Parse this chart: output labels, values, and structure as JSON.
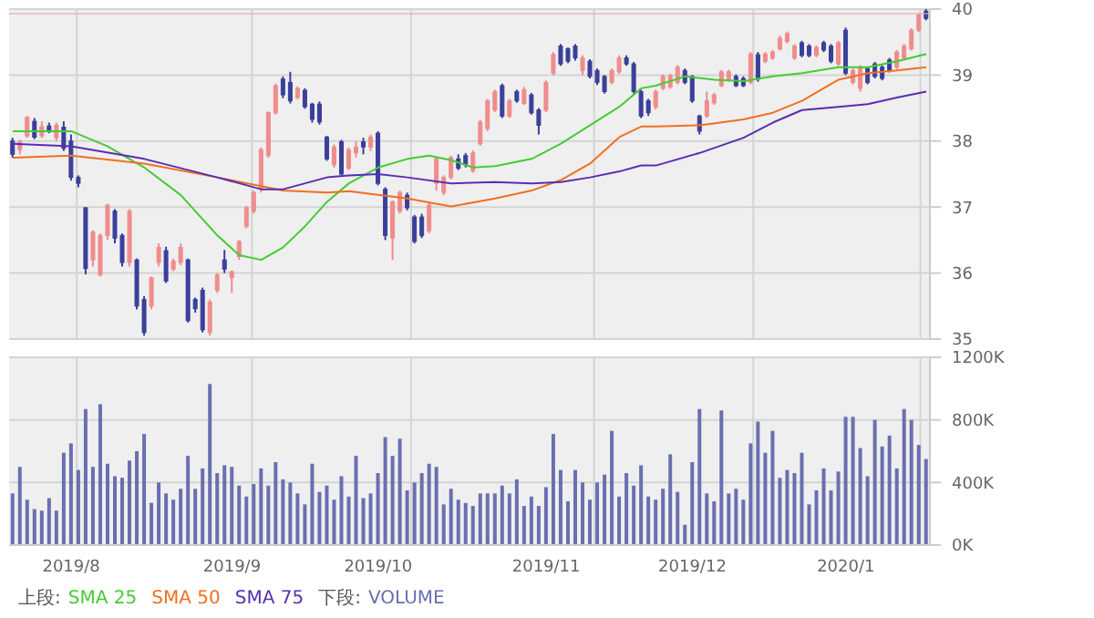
{
  "chart_data": [
    {
      "type": "candlestick",
      "categories": [
        null,
        null,
        null,
        null,
        null,
        null,
        null,
        null,
        "2019/8",
        null,
        null,
        null,
        null,
        null,
        null,
        null,
        null,
        null,
        null,
        null,
        null,
        null,
        null,
        null,
        null,
        null,
        null,
        null,
        null,
        null,
        "2019/9",
        null,
        null,
        null,
        null,
        null,
        null,
        null,
        null,
        null,
        null,
        null,
        null,
        null,
        null,
        null,
        null,
        null,
        null,
        null,
        "2019/10",
        null,
        null,
        null,
        null,
        null,
        null,
        null,
        null,
        null,
        null,
        null,
        null,
        null,
        null,
        null,
        null,
        null,
        null,
        null,
        null,
        null,
        null,
        "2019/11",
        null,
        null,
        null,
        null,
        null,
        null,
        null,
        null,
        null,
        null,
        null,
        null,
        null,
        null,
        null,
        null,
        null,
        null,
        null,
        "2019/12",
        null,
        null,
        null,
        null,
        null,
        null,
        null,
        null,
        null,
        null,
        null,
        null,
        null,
        null,
        null,
        null,
        null,
        null,
        null,
        null,
        "2020/1",
        null,
        null,
        null,
        null,
        null,
        null,
        null,
        null,
        null,
        null,
        null
      ],
      "ohlc": [
        [
          38.0,
          38.05,
          37.75,
          37.8
        ],
        [
          37.87,
          38.02,
          37.8,
          37.99
        ],
        [
          38.08,
          38.38,
          38.05,
          38.36
        ],
        [
          38.3,
          38.35,
          38.03,
          38.06
        ],
        [
          38.08,
          38.3,
          38.05,
          38.22
        ],
        [
          38.23,
          38.28,
          38.12,
          38.14
        ],
        [
          38.05,
          38.28,
          38.0,
          38.24
        ],
        [
          38.21,
          38.3,
          37.85,
          37.89
        ],
        [
          38.0,
          38.1,
          37.4,
          37.45
        ],
        [
          37.45,
          37.48,
          37.3,
          37.36
        ],
        [
          36.99,
          37.0,
          35.98,
          36.07
        ],
        [
          36.2,
          36.65,
          36.1,
          36.62
        ],
        [
          35.97,
          36.6,
          35.95,
          36.57
        ],
        [
          36.57,
          37.05,
          36.5,
          37.03
        ],
        [
          36.94,
          36.97,
          36.45,
          36.53
        ],
        [
          36.57,
          36.6,
          36.1,
          36.16
        ],
        [
          36.16,
          36.97,
          36.1,
          36.94
        ],
        [
          36.2,
          36.22,
          35.45,
          35.5
        ],
        [
          35.6,
          35.65,
          35.05,
          35.1
        ],
        [
          35.5,
          35.95,
          35.45,
          35.93
        ],
        [
          36.16,
          36.45,
          36.1,
          36.39
        ],
        [
          36.34,
          36.4,
          35.85,
          35.88
        ],
        [
          36.06,
          36.22,
          36.03,
          36.18
        ],
        [
          36.16,
          36.45,
          36.12,
          36.39
        ],
        [
          36.2,
          36.22,
          35.25,
          35.28
        ],
        [
          35.6,
          35.63,
          35.4,
          35.46
        ],
        [
          35.74,
          35.78,
          35.1,
          35.14
        ],
        [
          35.1,
          35.6,
          35.05,
          35.56
        ],
        [
          35.74,
          36.0,
          35.7,
          35.97
        ],
        [
          36.2,
          36.35,
          36.0,
          36.06
        ],
        [
          35.93,
          36.04,
          35.7,
          36.02
        ],
        [
          36.25,
          36.5,
          36.2,
          36.48
        ],
        [
          36.71,
          37.02,
          36.68,
          36.99
        ],
        [
          36.94,
          37.25,
          36.9,
          37.22
        ],
        [
          37.27,
          37.9,
          37.22,
          37.87
        ],
        [
          37.78,
          38.45,
          37.75,
          38.43
        ],
        [
          38.43,
          38.87,
          38.4,
          38.84
        ],
        [
          38.94,
          38.98,
          38.65,
          38.7
        ],
        [
          38.89,
          39.05,
          38.57,
          38.61
        ],
        [
          38.66,
          38.83,
          38.63,
          38.8
        ],
        [
          38.77,
          38.8,
          38.49,
          38.52
        ],
        [
          38.56,
          38.58,
          38.28,
          38.33
        ],
        [
          38.56,
          38.6,
          38.25,
          38.29
        ],
        [
          38.06,
          38.08,
          37.7,
          37.73
        ],
        [
          37.64,
          37.95,
          37.6,
          37.91
        ],
        [
          37.99,
          38.02,
          37.48,
          37.5
        ],
        [
          37.59,
          37.9,
          37.56,
          37.87
        ],
        [
          37.82,
          38.0,
          37.75,
          37.91
        ],
        [
          37.99,
          38.05,
          37.8,
          37.91
        ],
        [
          37.91,
          38.1,
          37.85,
          38.06
        ],
        [
          38.12,
          38.15,
          37.33,
          37.36
        ],
        [
          37.27,
          37.3,
          36.5,
          36.57
        ],
        [
          36.53,
          37.1,
          36.2,
          37.08
        ],
        [
          36.94,
          37.25,
          36.9,
          37.22
        ],
        [
          37.18,
          37.22,
          36.95,
          36.99
        ],
        [
          36.85,
          36.88,
          36.45,
          36.48
        ],
        [
          36.85,
          36.9,
          36.53,
          36.57
        ],
        [
          36.64,
          37.06,
          36.6,
          37.03
        ],
        [
          37.36,
          37.76,
          37.25,
          37.73
        ],
        [
          37.22,
          37.48,
          37.18,
          37.45
        ],
        [
          37.45,
          37.78,
          37.42,
          37.75
        ],
        [
          37.73,
          37.8,
          37.56,
          37.59
        ],
        [
          37.78,
          37.82,
          37.6,
          37.64
        ],
        [
          37.55,
          37.86,
          37.52,
          37.82
        ],
        [
          37.96,
          38.32,
          37.93,
          38.29
        ],
        [
          38.19,
          38.64,
          38.15,
          38.61
        ],
        [
          38.47,
          38.78,
          38.44,
          38.75
        ],
        [
          38.84,
          38.87,
          38.35,
          38.38
        ],
        [
          38.38,
          38.64,
          38.35,
          38.61
        ],
        [
          38.75,
          38.78,
          38.58,
          38.61
        ],
        [
          38.57,
          38.82,
          38.55,
          38.78
        ],
        [
          38.7,
          38.73,
          38.4,
          38.43
        ],
        [
          38.47,
          38.5,
          38.1,
          38.24
        ],
        [
          38.47,
          38.92,
          38.44,
          38.89
        ],
        [
          39.03,
          39.35,
          39.0,
          39.31
        ],
        [
          39.44,
          39.47,
          39.14,
          39.17
        ],
        [
          39.4,
          39.42,
          39.18,
          39.21
        ],
        [
          39.44,
          39.47,
          39.22,
          39.26
        ],
        [
          39.07,
          39.3,
          39.0,
          39.26
        ],
        [
          39.21,
          39.24,
          38.95,
          38.98
        ],
        [
          39.07,
          39.1,
          38.85,
          38.89
        ],
        [
          38.98,
          39.0,
          38.72,
          38.75
        ],
        [
          38.89,
          39.1,
          38.86,
          39.07
        ],
        [
          39.05,
          39.3,
          39.02,
          39.26
        ],
        [
          39.26,
          39.3,
          39.14,
          39.17
        ],
        [
          39.17,
          39.2,
          38.72,
          38.75
        ],
        [
          38.75,
          38.78,
          38.35,
          38.38
        ],
        [
          38.61,
          38.64,
          38.38,
          38.43
        ],
        [
          38.52,
          38.78,
          38.48,
          38.75
        ],
        [
          38.8,
          39.01,
          38.77,
          38.98
        ],
        [
          38.82,
          39.02,
          38.79,
          38.99
        ],
        [
          38.89,
          39.15,
          38.86,
          39.12
        ],
        [
          39.07,
          39.1,
          38.86,
          38.89
        ],
        [
          38.98,
          39.0,
          38.58,
          38.61
        ],
        [
          38.38,
          38.4,
          38.1,
          38.15
        ],
        [
          38.38,
          38.75,
          38.35,
          38.61
        ],
        [
          38.58,
          38.73,
          38.55,
          38.7
        ],
        [
          38.84,
          39.08,
          38.82,
          39.05
        ],
        [
          38.93,
          39.08,
          38.9,
          39.05
        ],
        [
          38.98,
          39.01,
          38.82,
          38.84
        ],
        [
          38.95,
          38.98,
          38.82,
          38.84
        ],
        [
          38.89,
          39.35,
          38.86,
          39.32
        ],
        [
          39.31,
          39.35,
          38.9,
          38.94
        ],
        [
          39.21,
          39.35,
          39.18,
          39.32
        ],
        [
          39.26,
          39.38,
          39.23,
          39.35
        ],
        [
          39.4,
          39.6,
          39.37,
          39.56
        ],
        [
          39.51,
          39.66,
          39.48,
          39.63
        ],
        [
          39.26,
          39.47,
          39.23,
          39.44
        ],
        [
          39.49,
          39.52,
          39.27,
          39.3
        ],
        [
          39.44,
          39.47,
          39.27,
          39.3
        ],
        [
          39.3,
          39.45,
          39.27,
          39.42
        ],
        [
          39.49,
          39.52,
          39.35,
          39.38
        ],
        [
          39.44,
          39.47,
          39.18,
          39.21
        ],
        [
          39.17,
          39.52,
          39.14,
          39.49
        ],
        [
          39.68,
          39.72,
          39.0,
          39.03
        ],
        [
          38.89,
          39.1,
          38.86,
          39.07
        ],
        [
          38.8,
          39.15,
          38.75,
          39.12
        ],
        [
          39.1,
          39.13,
          38.86,
          38.89
        ],
        [
          39.17,
          39.2,
          38.95,
          38.98
        ],
        [
          39.12,
          39.15,
          38.92,
          38.95
        ],
        [
          39.23,
          39.26,
          39.04,
          39.07
        ],
        [
          39.12,
          39.38,
          39.09,
          39.35
        ],
        [
          39.26,
          39.47,
          39.23,
          39.44
        ],
        [
          39.4,
          39.71,
          39.37,
          39.68
        ],
        [
          39.68,
          39.94,
          39.65,
          39.91
        ],
        [
          39.97,
          40.0,
          39.83,
          39.86
        ]
      ],
      "colors": [
        "#3a3f9a",
        "#f08c8c",
        "#f08c8c",
        "#3a3f9a",
        "#f08c8c",
        "#3a3f9a",
        "#f08c8c",
        "#3a3f9a",
        "#3a3f9a",
        "#3a3f9a",
        "#3a3f9a",
        "#f08c8c",
        "#f08c8c",
        "#f08c8c",
        "#3a3f9a",
        "#3a3f9a",
        "#f08c8c",
        "#3a3f9a",
        "#3a3f9a",
        "#f08c8c",
        "#f08c8c",
        "#3a3f9a",
        "#f08c8c",
        "#f08c8c",
        "#3a3f9a",
        "#3a3f9a",
        "#3a3f9a",
        "#f08c8c",
        "#f08c8c",
        "#3a3f9a",
        "#f08c8c",
        "#f08c8c",
        "#f08c8c",
        "#f08c8c",
        "#f08c8c",
        "#f08c8c",
        "#f08c8c",
        "#3a3f9a",
        "#3a3f9a",
        "#f08c8c",
        "#3a3f9a",
        "#3a3f9a",
        "#3a3f9a",
        "#3a3f9a",
        "#f08c8c",
        "#3a3f9a",
        "#f08c8c",
        "#f08c8c",
        "#3a3f9a",
        "#f08c8c",
        "#3a3f9a",
        "#3a3f9a",
        "#f08c8c",
        "#f08c8c",
        "#3a3f9a",
        "#3a3f9a",
        "#3a3f9a",
        "#f08c8c",
        "#f08c8c",
        "#f08c8c",
        "#f08c8c",
        "#3a3f9a",
        "#3a3f9a",
        "#f08c8c",
        "#f08c8c",
        "#f08c8c",
        "#f08c8c",
        "#3a3f9a",
        "#f08c8c",
        "#3a3f9a",
        "#f08c8c",
        "#3a3f9a",
        "#3a3f9a",
        "#f08c8c",
        "#f08c8c",
        "#3a3f9a",
        "#3a3f9a",
        "#3a3f9a",
        "#f08c8c",
        "#3a3f9a",
        "#3a3f9a",
        "#3a3f9a",
        "#f08c8c",
        "#f08c8c",
        "#3a3f9a",
        "#3a3f9a",
        "#3a3f9a",
        "#3a3f9a",
        "#f08c8c",
        "#f08c8c",
        "#f08c8c",
        "#f08c8c",
        "#3a3f9a",
        "#3a3f9a",
        "#3a3f9a",
        "#f08c8c",
        "#f08c8c",
        "#f08c8c",
        "#f08c8c",
        "#3a3f9a",
        "#3a3f9a",
        "#f08c8c",
        "#3a3f9a",
        "#f08c8c",
        "#f08c8c",
        "#f08c8c",
        "#f08c8c",
        "#f08c8c",
        "#3a3f9a",
        "#3a3f9a",
        "#f08c8c",
        "#3a3f9a",
        "#3a3f9a",
        "#f08c8c",
        "#3a3f9a",
        "#f08c8c",
        "#f08c8c",
        "#3a3f9a",
        "#3a3f9a",
        "#3a3f9a",
        "#3a3f9a",
        "#f08c8c",
        "#f08c8c",
        "#f08c8c",
        "#f08c8c",
        "#3a3f9a"
      ],
      "series": [
        {
          "type": "line",
          "name": "SMA 25",
          "color": "#44cc33",
          "values": [
            38.15,
            null,
            null,
            null,
            null,
            null,
            null,
            null,
            38.15,
            null,
            null,
            null,
            null,
            37.92,
            null,
            null,
            null,
            null,
            37.6,
            null,
            null,
            null,
            null,
            37.18,
            null,
            null,
            null,
            null,
            36.57,
            null,
            null,
            36.27,
            null,
            null,
            36.2,
            null,
            null,
            36.39,
            null,
            null,
            36.71,
            null,
            null,
            37.08,
            null,
            null,
            37.36,
            null,
            null,
            null,
            37.6,
            null,
            null,
            null,
            37.73,
            null,
            null,
            37.78,
            null,
            null,
            37.71,
            null,
            null,
            37.6,
            null,
            null,
            37.62,
            null,
            null,
            null,
            null,
            37.73,
            null,
            null,
            null,
            37.96,
            null,
            null,
            null,
            38.24,
            null,
            null,
            null,
            38.52,
            null,
            null,
            38.8,
            null,
            38.84,
            null,
            null,
            null,
            38.98,
            null,
            null,
            null,
            38.93,
            null,
            null,
            null,
            38.91,
            null,
            null,
            null,
            38.98,
            null,
            null,
            null,
            39.03,
            null,
            null,
            null,
            null,
            39.12,
            null,
            null,
            null,
            39.12,
            null,
            null,
            null,
            39.21,
            null,
            null,
            null,
            39.32
          ]
        },
        {
          "type": "line",
          "name": "SMA 50",
          "color": "#f07020",
          "values": [
            37.75,
            null,
            null,
            null,
            null,
            null,
            null,
            null,
            37.78,
            null,
            null,
            null,
            null,
            null,
            null,
            null,
            null,
            null,
            37.66,
            null,
            null,
            null,
            null,
            null,
            null,
            null,
            null,
            null,
            37.45,
            null,
            null,
            null,
            null,
            null,
            null,
            null,
            null,
            37.25,
            null,
            null,
            null,
            null,
            null,
            37.22,
            null,
            null,
            37.24,
            null,
            null,
            null,
            null,
            null,
            null,
            null,
            37.13,
            null,
            null,
            null,
            null,
            null,
            37.01,
            null,
            null,
            null,
            null,
            null,
            37.13,
            null,
            null,
            null,
            null,
            37.25,
            null,
            null,
            null,
            37.41,
            null,
            null,
            null,
            37.66,
            null,
            null,
            null,
            38.06,
            null,
            null,
            38.22,
            null,
            38.22,
            null,
            null,
            null,
            null,
            null,
            38.24,
            null,
            null,
            null,
            null,
            null,
            38.33,
            null,
            null,
            null,
            38.43,
            null,
            null,
            null,
            38.61,
            null,
            null,
            null,
            null,
            38.93,
            null,
            null,
            null,
            39.03,
            null,
            null,
            null,
            39.07,
            null,
            null,
            null,
            39.12
          ]
        },
        {
          "type": "line",
          "name": "SMA 75",
          "color": "#5a2db4",
          "values": [
            37.96,
            null,
            null,
            null,
            null,
            null,
            null,
            null,
            37.92,
            null,
            null,
            null,
            null,
            null,
            null,
            null,
            null,
            null,
            37.73,
            null,
            null,
            null,
            null,
            null,
            null,
            null,
            null,
            null,
            37.45,
            null,
            null,
            null,
            null,
            null,
            37.27,
            null,
            null,
            37.27,
            null,
            null,
            null,
            null,
            null,
            37.45,
            null,
            null,
            37.48,
            null,
            null,
            null,
            37.5,
            null,
            null,
            null,
            37.45,
            null,
            null,
            null,
            null,
            null,
            37.36,
            null,
            null,
            null,
            null,
            null,
            37.38,
            null,
            null,
            null,
            null,
            37.36,
            null,
            null,
            null,
            37.38,
            null,
            null,
            null,
            37.45,
            null,
            null,
            null,
            37.54,
            null,
            null,
            37.63,
            null,
            37.63,
            null,
            null,
            null,
            null,
            null,
            37.82,
            null,
            null,
            null,
            null,
            null,
            38.05,
            null,
            null,
            null,
            38.28,
            null,
            null,
            null,
            38.47,
            null,
            null,
            null,
            null,
            38.52,
            null,
            null,
            null,
            38.56,
            null,
            null,
            null,
            38.66,
            null,
            null,
            null,
            38.75
          ]
        }
      ],
      "ylim": [
        35,
        40
      ],
      "yticks": [
        35,
        36,
        37,
        38,
        39,
        40
      ],
      "grid": true,
      "tick_labels": "y",
      "legend": "bottom",
      "legend_title": "上段:",
      "ref_lines": [
        {
          "axis": "y",
          "value": 39.93,
          "color": "#f0a8a8"
        }
      ]
    },
    {
      "type": "bar",
      "categories": [
        null,
        null,
        null,
        null,
        null,
        null,
        null,
        null,
        "2019/8",
        null,
        null,
        null,
        null,
        null,
        null,
        null,
        null,
        null,
        null,
        null,
        null,
        null,
        null,
        null,
        null,
        null,
        null,
        null,
        null,
        null,
        "2019/9",
        null,
        null,
        null,
        null,
        null,
        null,
        null,
        null,
        null,
        null,
        null,
        null,
        null,
        null,
        null,
        null,
        null,
        null,
        null,
        "2019/10",
        null,
        null,
        null,
        null,
        null,
        null,
        null,
        null,
        null,
        null,
        null,
        null,
        null,
        null,
        null,
        null,
        null,
        null,
        null,
        null,
        null,
        null,
        "2019/11",
        null,
        null,
        null,
        null,
        null,
        null,
        null,
        null,
        null,
        null,
        null,
        null,
        null,
        null,
        null,
        null,
        null,
        null,
        null,
        "2019/12",
        null,
        null,
        null,
        null,
        null,
        null,
        null,
        null,
        null,
        null,
        null,
        null,
        null,
        null,
        null,
        null,
        null,
        null,
        null,
        null,
        "2020/1",
        null,
        null,
        null,
        null,
        null,
        null,
        null,
        null,
        null,
        null,
        null
      ],
      "series": [
        {
          "name": "VOLUME",
          "color": "#6a6fb0",
          "values": [
            330000,
            500000,
            290000,
            230000,
            220000,
            300000,
            220000,
            590000,
            650000,
            480000,
            870000,
            500000,
            900000,
            520000,
            440000,
            430000,
            540000,
            600000,
            710000,
            270000,
            400000,
            330000,
            290000,
            360000,
            570000,
            360000,
            490000,
            1030000,
            460000,
            510000,
            500000,
            380000,
            310000,
            390000,
            490000,
            380000,
            530000,
            420000,
            400000,
            330000,
            260000,
            520000,
            340000,
            380000,
            290000,
            440000,
            310000,
            570000,
            300000,
            330000,
            460000,
            690000,
            570000,
            680000,
            350000,
            400000,
            460000,
            520000,
            500000,
            260000,
            360000,
            290000,
            270000,
            250000,
            330000,
            330000,
            330000,
            380000,
            330000,
            420000,
            250000,
            310000,
            250000,
            370000,
            710000,
            480000,
            280000,
            480000,
            400000,
            290000,
            400000,
            450000,
            730000,
            310000,
            460000,
            380000,
            510000,
            310000,
            290000,
            360000,
            580000,
            340000,
            130000,
            530000,
            870000,
            330000,
            280000,
            860000,
            330000,
            360000,
            290000,
            650000,
            790000,
            590000,
            730000,
            430000,
            480000,
            460000,
            590000,
            260000,
            350000,
            490000,
            350000,
            470000,
            820000,
            820000,
            620000,
            440000,
            800000,
            630000,
            700000,
            490000,
            870000,
            800000,
            640000,
            550000
          ]
        }
      ],
      "ylim": [
        0,
        1200000
      ],
      "yticks": [
        {
          "value": 0,
          "label": "0K"
        },
        {
          "value": 400000,
          "label": "400K"
        },
        {
          "value": 800000,
          "label": "800K"
        },
        {
          "value": 1200000,
          "label": "1200K"
        }
      ],
      "grid": true,
      "legend": "bottom",
      "legend_title": "下段:"
    }
  ]
}
